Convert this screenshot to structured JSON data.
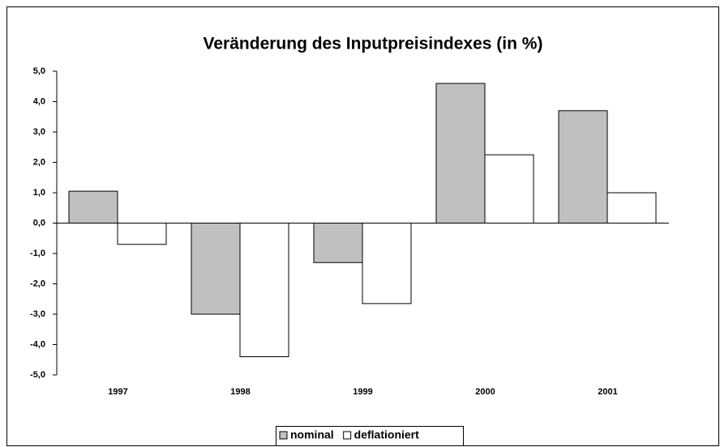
{
  "chart_data": {
    "type": "bar",
    "title": "Veränderung des Inputpreisindexes (in %)",
    "categories": [
      "1997",
      "1998",
      "1999",
      "2000",
      "2001"
    ],
    "series": [
      {
        "name": "nominal",
        "color": "#c0c0c0",
        "values": [
          1.05,
          -3.0,
          -1.3,
          4.6,
          3.7
        ]
      },
      {
        "name": "deflationiert",
        "color": "#ffffff",
        "values": [
          -0.7,
          -4.4,
          -2.65,
          2.25,
          1.0
        ]
      }
    ],
    "ylim": [
      -5,
      5
    ],
    "yticks": [
      {
        "value": -5,
        "label": "-5,0"
      },
      {
        "value": -4,
        "label": "-4,0"
      },
      {
        "value": -3,
        "label": "-3,0"
      },
      {
        "value": -2,
        "label": "-2,0"
      },
      {
        "value": -1,
        "label": "-1,0"
      },
      {
        "value": 0,
        "label": "0,0"
      },
      {
        "value": 1,
        "label": "1,0"
      },
      {
        "value": 2,
        "label": "2,0"
      },
      {
        "value": 3,
        "label": "3,0"
      },
      {
        "value": 4,
        "label": "4,0"
      },
      {
        "value": 5,
        "label": "5,0"
      }
    ],
    "grid": false,
    "legend": "bottom"
  }
}
